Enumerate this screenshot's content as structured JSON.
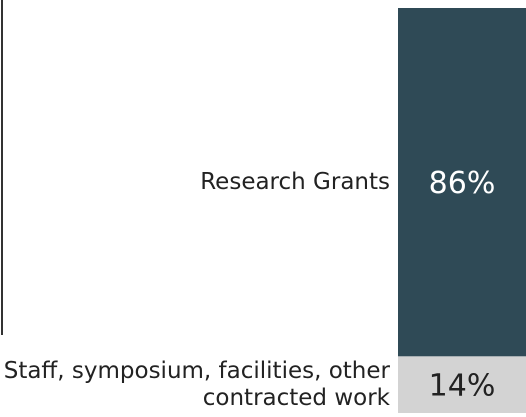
{
  "chart_data": {
    "type": "stacked-bar",
    "series": [
      {
        "name": "Staff, symposium, facilities, other contracted work",
        "color": "#d3d3d3",
        "label_color": "#222222",
        "values": [
          14
        ],
        "value_labels": [
          "14%"
        ]
      },
      {
        "name": "Research Grants",
        "color": "#2f4a56",
        "label_color": "#ffffff",
        "values": [
          86
        ],
        "value_labels": [
          "86%"
        ]
      }
    ],
    "ylim": [
      0,
      100
    ]
  }
}
